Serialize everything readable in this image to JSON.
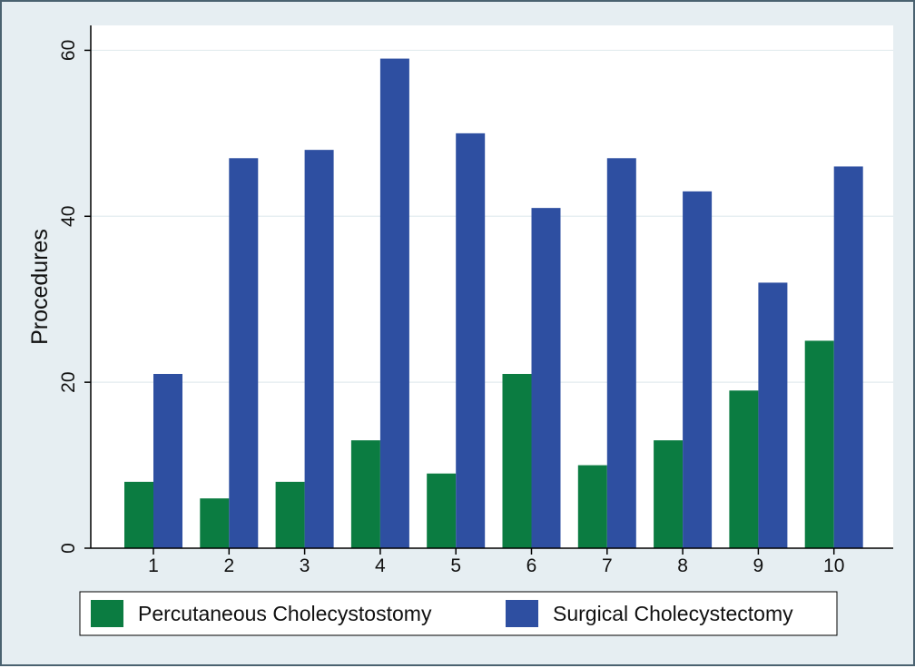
{
  "chart_data": {
    "type": "bar",
    "title": "",
    "xlabel": "",
    "ylabel": "Procedures",
    "categories": [
      "1",
      "2",
      "3",
      "4",
      "5",
      "6",
      "7",
      "8",
      "9",
      "10"
    ],
    "series": [
      {
        "name": "Percutaneous Cholecystostomy",
        "color": "#0b7c41",
        "values": [
          8,
          6,
          8,
          13,
          9,
          21,
          10,
          13,
          19,
          25
        ]
      },
      {
        "name": "Surgical Cholecystectomy",
        "color": "#2e4fa1",
        "values": [
          21,
          47,
          48,
          59,
          50,
          41,
          47,
          43,
          32,
          46
        ]
      }
    ],
    "ylim": [
      0,
      63
    ],
    "yticks": [
      0,
      20,
      40,
      60
    ],
    "grid": true,
    "legend_position": "bottom",
    "plot_background": "#ffffff",
    "figure_background": "#e6eef2"
  }
}
